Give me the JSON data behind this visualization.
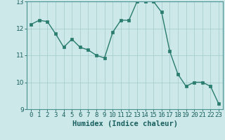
{
  "x": [
    0,
    1,
    2,
    3,
    4,
    5,
    6,
    7,
    8,
    9,
    10,
    11,
    12,
    13,
    14,
    15,
    16,
    17,
    18,
    19,
    20,
    21,
    22,
    23
  ],
  "y": [
    12.15,
    12.3,
    12.25,
    11.8,
    11.3,
    11.6,
    11.3,
    11.2,
    11.0,
    10.9,
    11.85,
    12.3,
    12.3,
    13.0,
    13.0,
    13.0,
    12.6,
    11.15,
    10.3,
    9.85,
    10.0,
    10.0,
    9.85,
    9.2
  ],
  "line_color": "#2a7d6e",
  "marker": "s",
  "marker_size": 2.2,
  "linewidth": 1.0,
  "bg_color": "#cce8e8",
  "grid_color": "#aacece",
  "xlabel": "Humidex (Indice chaleur)",
  "xlim": [
    -0.5,
    23.5
  ],
  "ylim": [
    9,
    13
  ],
  "yticks": [
    9,
    10,
    11,
    12,
    13
  ],
  "xtick_labels": [
    "0",
    "1",
    "2",
    "3",
    "4",
    "5",
    "6",
    "7",
    "8",
    "9",
    "10",
    "11",
    "12",
    "13",
    "14",
    "15",
    "16",
    "17",
    "18",
    "19",
    "20",
    "21",
    "22",
    "23"
  ],
  "xlabel_fontsize": 7.5,
  "tick_fontsize": 6.5,
  "tick_color": "#1a5f5f",
  "label_color": "#1a5f5f",
  "axis_color": "#4a9090"
}
